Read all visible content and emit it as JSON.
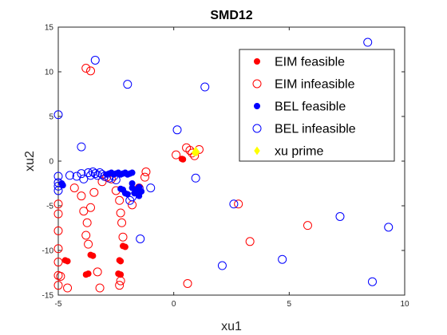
{
  "chart_data": {
    "type": "scatter",
    "title": "SMD12",
    "xlabel": "xu1",
    "ylabel": "xu2",
    "xlim": [
      -5,
      10
    ],
    "ylim": [
      -15,
      15
    ],
    "xticks": [
      "-5",
      "0",
      "5",
      "10"
    ],
    "yticks": [
      "15",
      "10",
      "5",
      "0",
      "-5",
      "-10",
      "-15"
    ],
    "grid": false,
    "legend_position": "top-right",
    "series": [
      {
        "name": "EIM feasible",
        "marker": "filled-circle",
        "color": "#ff0000",
        "points": [
          [
            -4.6,
            -11.2
          ],
          [
            -4.7,
            -11.1
          ],
          [
            -3.5,
            -10.6
          ],
          [
            -3.6,
            -10.5
          ],
          [
            -2.1,
            -9.6
          ],
          [
            -2.2,
            -9.5
          ],
          [
            -3.7,
            -12.6
          ],
          [
            -3.8,
            -12.7
          ],
          [
            -2.3,
            -11.2
          ],
          [
            -2.35,
            -11.1
          ],
          [
            -2.4,
            -12.6
          ],
          [
            -2.3,
            -12.7
          ],
          [
            0.4,
            0.2
          ],
          [
            0.35,
            0.25
          ]
        ]
      },
      {
        "name": "EIM infeasible",
        "marker": "open-circle",
        "color": "#ff0000",
        "points": [
          [
            -3.8,
            10.4
          ],
          [
            -3.6,
            10.1
          ],
          [
            -5,
            -4.8
          ],
          [
            -5,
            -5.9
          ],
          [
            -5,
            -7.8
          ],
          [
            -5,
            -9.8
          ],
          [
            -5,
            -11.3
          ],
          [
            -5,
            -12.8
          ],
          [
            -5,
            -13.9
          ],
          [
            -4.9,
            -12.9
          ],
          [
            -4.6,
            -14.2
          ],
          [
            -4.3,
            -3
          ],
          [
            -4,
            -3.9
          ],
          [
            -3.9,
            -5.6
          ],
          [
            -3.75,
            -6.9
          ],
          [
            -3.8,
            -8.3
          ],
          [
            -3.7,
            -9.3
          ],
          [
            -3.45,
            -3.5
          ],
          [
            -3.6,
            -5.2
          ],
          [
            -3.2,
            -14.2
          ],
          [
            -3.3,
            -12.4
          ],
          [
            -3.1,
            -2.3
          ],
          [
            -2.9,
            -1.8
          ],
          [
            -2.7,
            -2
          ],
          [
            -2.5,
            -3.3
          ],
          [
            -2.35,
            -4.4
          ],
          [
            -2.3,
            -5.8
          ],
          [
            -2.25,
            -6.9
          ],
          [
            -2.2,
            -8.5
          ],
          [
            -2.3,
            -13.4
          ],
          [
            -2.35,
            -13.9
          ],
          [
            -1.8,
            -4.9
          ],
          [
            -1.5,
            -3
          ],
          [
            -1.2,
            -1.2
          ],
          [
            -1.25,
            -1.8
          ],
          [
            0.1,
            0.7
          ],
          [
            0.55,
            1.5
          ],
          [
            0.7,
            1.2
          ],
          [
            0.8,
            0.9
          ],
          [
            0.9,
            0.6
          ],
          [
            1.1,
            1.3
          ],
          [
            2.8,
            -4.8
          ],
          [
            3.3,
            -9
          ],
          [
            5.8,
            -7.2
          ],
          [
            0.6,
            -13.7
          ]
        ]
      },
      {
        "name": "BEL feasible",
        "marker": "filled-circle",
        "color": "#0000ff",
        "points": [
          [
            -4.8,
            -2.7
          ],
          [
            -4.85,
            -2.5
          ],
          [
            -2.2,
            -3.2
          ],
          [
            -2.1,
            -3.6
          ],
          [
            -2.3,
            -3.1
          ],
          [
            -2,
            -3.7
          ],
          [
            -1.8,
            -3
          ],
          [
            -1.7,
            -3.6
          ],
          [
            -1.6,
            -3.2
          ],
          [
            -1.5,
            -3.9
          ],
          [
            -1.4,
            -3.4
          ],
          [
            -1.5,
            -2.9
          ],
          [
            -1.8,
            -2.5
          ],
          [
            -2.9,
            -1.5
          ],
          [
            -2.8,
            -1.4
          ],
          [
            -2.7,
            -1.3
          ],
          [
            -2.6,
            -1.5
          ],
          [
            -2.5,
            -1.4
          ],
          [
            -2.4,
            -1.3
          ],
          [
            -2.3,
            -1.5
          ],
          [
            -2.2,
            -1.4
          ],
          [
            -2.1,
            -1.3
          ],
          [
            -2,
            -1.5
          ],
          [
            -1.9,
            -1.4
          ],
          [
            -1.8,
            -1.3
          ]
        ]
      },
      {
        "name": "BEL infeasible",
        "marker": "open-circle",
        "color": "#0000ff",
        "points": [
          [
            -3.4,
            11.3
          ],
          [
            -2,
            8.6
          ],
          [
            -5,
            5.2
          ],
          [
            -4,
            1.6
          ],
          [
            -5,
            -1.7
          ],
          [
            -5,
            -2.4
          ],
          [
            -5,
            -2.8
          ],
          [
            -5,
            -3.3
          ],
          [
            -4.5,
            -1.6
          ],
          [
            -4.2,
            -1.7
          ],
          [
            -4,
            -1.4
          ],
          [
            -3.9,
            -2
          ],
          [
            -3.7,
            -1.3
          ],
          [
            -3.6,
            -1.6
          ],
          [
            -3.5,
            -1.2
          ],
          [
            -3.4,
            -1.4
          ],
          [
            -3.3,
            -1.6
          ],
          [
            -3.2,
            -1.3
          ],
          [
            -3.1,
            -1.5
          ],
          [
            -3,
            -1.7
          ],
          [
            -2.8,
            -1.9
          ],
          [
            -2.6,
            -1.7
          ],
          [
            -2.5,
            -2.1
          ],
          [
            -1.8,
            -4
          ],
          [
            -1.9,
            -4.4
          ],
          [
            -1.5,
            -3.1
          ],
          [
            -1.45,
            -8.7
          ],
          [
            -1,
            -3
          ],
          [
            0.15,
            3.5
          ],
          [
            0.95,
            -1.9
          ],
          [
            1.35,
            8.3
          ],
          [
            2.6,
            -4.8
          ],
          [
            2.1,
            -11.7
          ],
          [
            4.7,
            -11
          ],
          [
            7.2,
            -6.2
          ],
          [
            8.4,
            13.3
          ],
          [
            9.3,
            -7.4
          ],
          [
            8.6,
            -13.5
          ]
        ]
      },
      {
        "name": "xu prime",
        "marker": "filled-diamond",
        "color": "#ffff00",
        "points": [
          [
            0.95,
            1.15
          ],
          [
            1.0,
            1.0
          ],
          [
            0.9,
            0.95
          ]
        ]
      }
    ]
  }
}
